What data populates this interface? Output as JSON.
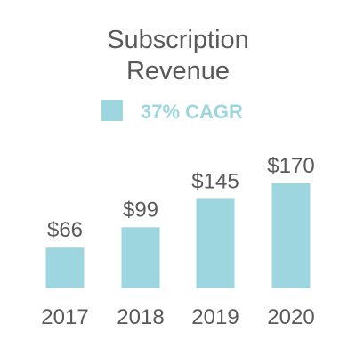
{
  "chart_data": {
    "type": "bar",
    "title": "Subscription Revenue",
    "title_lines": [
      "Subscription",
      "Revenue"
    ],
    "categories": [
      "2017",
      "2018",
      "2019",
      "2020"
    ],
    "series": [
      {
        "name": "37% CAGR",
        "values": [
          66,
          99,
          145,
          170
        ],
        "data_labels": [
          "$66",
          "$99",
          "$145",
          "$170"
        ],
        "color": "#9dd6df"
      }
    ],
    "xlabel": "",
    "ylabel": "",
    "ylim": [
      0,
      170
    ],
    "grid": false,
    "legend_position": "top-center",
    "legend_text_color": "#9dd6df",
    "text_color": "#595959"
  }
}
